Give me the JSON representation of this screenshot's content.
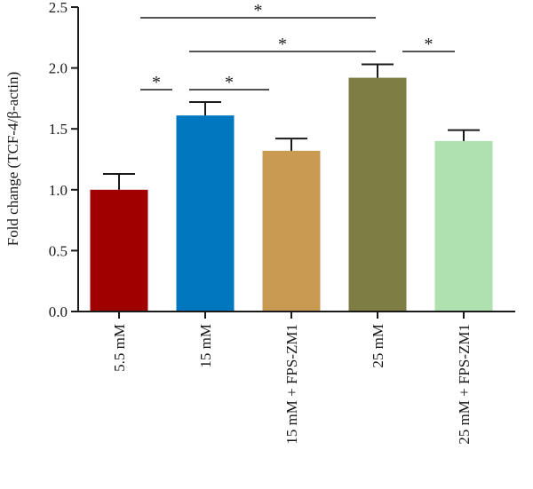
{
  "chart_data": {
    "type": "bar",
    "categories": [
      "5.5 mM",
      "15 mM",
      "15 mM + FPS-ZM1",
      "25 mM",
      "25 mM + FPS-ZM1"
    ],
    "values": [
      1.0,
      1.61,
      1.32,
      1.92,
      1.4
    ],
    "errors": [
      0.13,
      0.11,
      0.1,
      0.11,
      0.09
    ],
    "colors": [
      "#a10000",
      "#0077be",
      "#c89a52",
      "#7e7d44",
      "#aee0b0"
    ],
    "ylabel": "Fold change (TCF-4/β-actin)",
    "ylim": [
      0,
      2.5
    ],
    "yticks": [
      "0.0",
      "0.5",
      "1.0",
      "1.5",
      "2.0",
      "2.5"
    ],
    "grid": false,
    "significance": [
      {
        "from": "5.5 mM",
        "to": "25 mM",
        "label": "*"
      },
      {
        "from": "15 mM",
        "to": "25 mM",
        "label": "*"
      },
      {
        "from": "25 mM",
        "to": "25 mM + FPS-ZM1",
        "label": "*"
      },
      {
        "from": "5.5 mM",
        "to": "15 mM",
        "label": "*"
      },
      {
        "from": "15 mM",
        "to": "15 mM + FPS-ZM1",
        "label": "*"
      }
    ]
  }
}
